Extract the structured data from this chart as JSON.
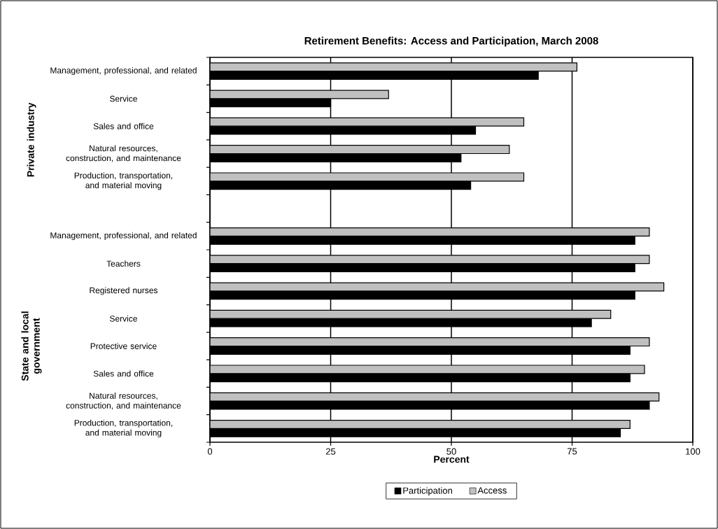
{
  "chart_data": {
    "type": "bar",
    "orientation": "horizontal",
    "title": "Retirement Benefits: Access and Participation, March 2008",
    "xlabel": "Percent",
    "categories": [
      "Management, professional, and related",
      "Service",
      "Sales and office",
      "Natural resources, construction, and maintenance",
      "Production, transportation, and material moving",
      null,
      "Management, professional, and related",
      "Teachers",
      "Registered nurses",
      "Service",
      "Protective service",
      "Sales and office",
      "Natural resources, construction, and maintenance",
      "Production, transportation, and material moving"
    ],
    "series": [
      {
        "name": "Participation",
        "color": "#000000",
        "values": [
          68,
          25,
          55,
          52,
          54,
          null,
          88,
          88,
          88,
          79,
          87,
          87,
          91,
          85
        ]
      },
      {
        "name": "Access",
        "color": "#c0c0c0",
        "values": [
          76,
          37,
          65,
          62,
          65,
          null,
          91,
          91,
          94,
          83,
          91,
          90,
          93,
          87
        ]
      }
    ],
    "xlim": [
      0,
      100
    ],
    "xticks": [
      0,
      25,
      50,
      75,
      100
    ],
    "grid": "x",
    "legend": "bottom",
    "annotations": [
      "Private industry",
      "State and local government"
    ]
  }
}
